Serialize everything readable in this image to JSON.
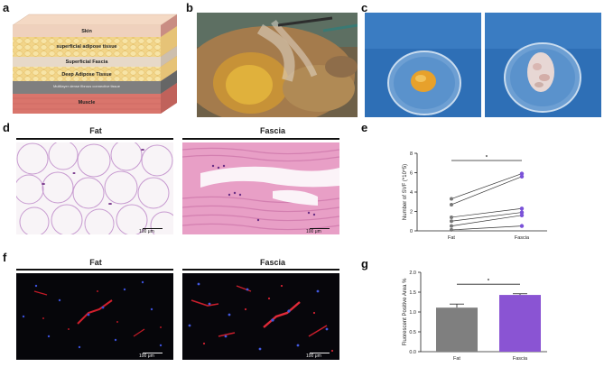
{
  "figure": {
    "panel_labels": {
      "a": "a",
      "b": "b",
      "c": "c",
      "d": "d",
      "e": "e",
      "f": "f",
      "g": "g"
    },
    "panel_a": {
      "layers": [
        "Skin",
        "superficial adipose tissue",
        "Superficial Fascia",
        "Deep Adipose Tissue",
        "Multilayer dense fibrous connective tissue",
        "Muscle"
      ]
    },
    "panel_d": {
      "left_title": "Fat",
      "right_title": "Fascia",
      "scale": "100 μm"
    },
    "panel_f": {
      "left_title": "Fat",
      "right_title": "Fascia",
      "scale": "100 μm"
    },
    "colors": {
      "fat_bar": "#7f7f7f",
      "fascia_bar": "#8a54d3",
      "purple_point": "#7a52d8",
      "gray_point": "#777777"
    }
  },
  "chart_data": [
    {
      "type": "scatter",
      "panel": "e",
      "title": "",
      "ylabel": "Number of SVF (*10^5)",
      "xlabel": "",
      "categories": [
        "Fat",
        "Fascia"
      ],
      "ylim": [
        0,
        8
      ],
      "yticks": [
        0,
        2,
        4,
        6,
        8
      ],
      "significance": "*",
      "pairs": [
        {
          "fat": 3.3,
          "fascia": 5.9
        },
        {
          "fat": 2.7,
          "fascia": 5.6
        },
        {
          "fat": 1.4,
          "fascia": 2.3
        },
        {
          "fat": 1.0,
          "fascia": 1.9
        },
        {
          "fat": 0.5,
          "fascia": 1.6
        },
        {
          "fat": 0.1,
          "fascia": 0.5
        }
      ]
    },
    {
      "type": "bar",
      "panel": "g",
      "title": "",
      "ylabel": "Fluorescent Positive Area %",
      "xlabel": "",
      "categories": [
        "Fat",
        "Fascia"
      ],
      "values": [
        1.11,
        1.43
      ],
      "errors": [
        0.09,
        0.03
      ],
      "ylim": [
        0,
        2.0
      ],
      "yticks": [
        "0.0",
        "0.5",
        "1.0",
        "1.5",
        "2.0"
      ],
      "significance": "*"
    }
  ]
}
